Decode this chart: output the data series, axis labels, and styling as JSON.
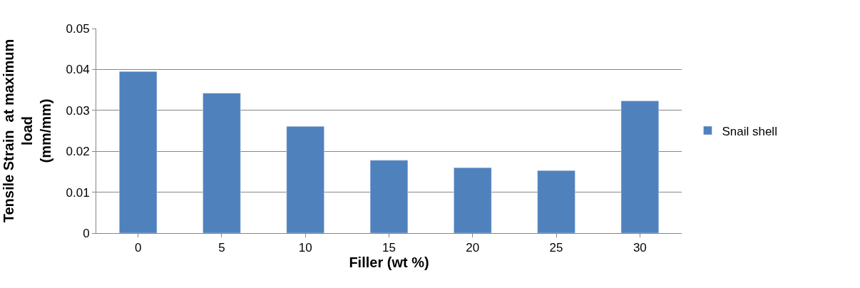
{
  "chart_data": {
    "type": "bar",
    "xlabel": "Filler (wt %)",
    "ylabel": "Tensile Strain  at maximum\nload\n(mm/mm)",
    "categories": [
      "0",
      "5",
      "10",
      "15",
      "20",
      "25",
      "30"
    ],
    "series": [
      {
        "name": "Snail shell",
        "color": "#4f81bd",
        "values": [
          0.0395,
          0.0342,
          0.0261,
          0.0178,
          0.016,
          0.0153,
          0.0323
        ]
      }
    ],
    "ylim": [
      0,
      0.05
    ],
    "yticks": [
      0,
      0.01,
      0.02,
      0.03,
      0.04,
      0.05
    ],
    "grid": "y",
    "legend": "right"
  }
}
